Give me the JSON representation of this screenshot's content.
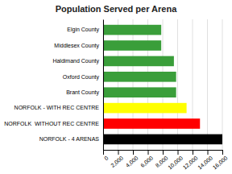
{
  "chart_data": {
    "type": "bar",
    "orientation": "horizontal",
    "title": "Population Served per Arena",
    "categories": [
      "NORFOLK - 4 ARENAS",
      "NORFOLK  WITHOUT REC CENTRE",
      "NORFOLK - WITH REC CENTRE",
      "Brant County",
      "Oxford County",
      "Haldimand County",
      "Middlesex County",
      "Elgin County"
    ],
    "values": [
      16000,
      13000,
      11200,
      9800,
      9800,
      9500,
      7800,
      7800
    ],
    "colors": [
      "#000000",
      "#ff0000",
      "#ffff00",
      "#3a9e3a",
      "#3a9e3a",
      "#3a9e3a",
      "#3a9e3a",
      "#3a9e3a"
    ],
    "xlim": [
      0,
      16000
    ],
    "xticks": [
      0,
      {
        "value": 2000,
        "label": "2,000"
      },
      {
        "value": 4000,
        "label": "4,000"
      },
      {
        "value": 6000,
        "label": "6,000"
      },
      {
        "value": 8000,
        "label": "8,000"
      },
      {
        "value": 10000,
        "label": "10,000"
      },
      {
        "value": 12000,
        "label": "12,000"
      },
      {
        "value": 14000,
        "label": "14,000"
      },
      {
        "value": 16000,
        "label": "16,000"
      }
    ],
    "grid": true
  }
}
